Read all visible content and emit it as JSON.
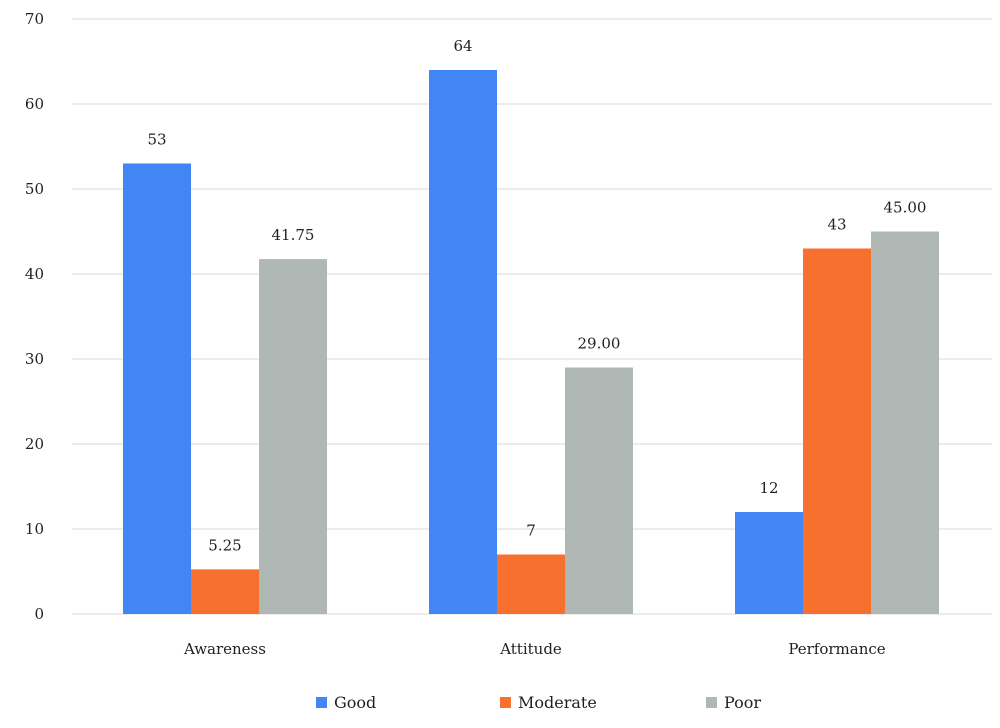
{
  "chart_data": {
    "type": "bar",
    "categories": [
      "Awareness",
      "Attitude",
      "Performance"
    ],
    "series": [
      {
        "name": "Good",
        "values": [
          53,
          64,
          12
        ],
        "labels": [
          "53",
          "64",
          "12"
        ],
        "color": "#4285f4"
      },
      {
        "name": "Moderate",
        "values": [
          5.25,
          7,
          43
        ],
        "labels": [
          "5.25",
          "7",
          "43"
        ],
        "color": "#f8702d"
      },
      {
        "name": "Poor",
        "values": [
          41.75,
          29,
          45
        ],
        "labels": [
          "41.75",
          "29.00",
          "45.00"
        ],
        "color": "#b0b8b6"
      }
    ],
    "yticks": [
      "0",
      "10",
      "20",
      "30",
      "40",
      "50",
      "60",
      "70"
    ],
    "ylim": [
      0,
      70
    ],
    "grid": true,
    "legend_position": "bottom",
    "title": "",
    "xlabel": "",
    "ylabel": ""
  }
}
